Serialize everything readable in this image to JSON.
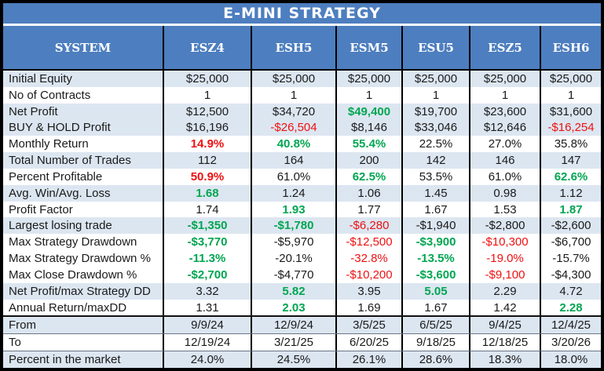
{
  "colors": {
    "header_blue": "#4d7ebf",
    "band_light_blue": "#dce6f1",
    "positive_green": "#00a651",
    "negative_red": "#ee1111",
    "frame_black": "#000000"
  },
  "chart_data": {
    "type": "table",
    "title": "E-MINI STRATEGY",
    "columns": [
      "SYSTEM",
      "ESZ4",
      "ESH5",
      "ESM5",
      "ESU5",
      "ESZ5",
      "ESH6"
    ],
    "style_legend": {
      "k": "black normal",
      "g": "green bold",
      "r": "red normal",
      "rb": "red bold"
    },
    "rows": [
      {
        "label": "Initial Equity",
        "values": [
          "$25,000",
          "$25,000",
          "$25,000",
          "$25,000",
          "$25,000",
          "$25,000"
        ],
        "styles": [
          "k",
          "k",
          "k",
          "k",
          "k",
          "k"
        ]
      },
      {
        "label": "No of Contracts",
        "values": [
          "1",
          "1",
          "1",
          "1",
          "1",
          "1"
        ],
        "styles": [
          "k",
          "k",
          "k",
          "k",
          "k",
          "k"
        ]
      },
      {
        "label": "Net Profit",
        "values": [
          "$12,500",
          "$34,720",
          "$49,400",
          "$19,700",
          "$23,600",
          "$31,600"
        ],
        "styles": [
          "k",
          "k",
          "g",
          "k",
          "k",
          "k"
        ]
      },
      {
        "label": "BUY & HOLD Profit",
        "values": [
          "$16,196",
          "-$26,504",
          "$8,146",
          "$33,046",
          "$12,646",
          "-$16,254"
        ],
        "styles": [
          "k",
          "r",
          "k",
          "k",
          "k",
          "r"
        ]
      },
      {
        "label": "Monthly Return",
        "values": [
          "14.9%",
          "40.8%",
          "55.4%",
          "22.5%",
          "27.0%",
          "35.8%"
        ],
        "styles": [
          "rb",
          "g",
          "g",
          "k",
          "k",
          "k"
        ]
      },
      {
        "label": "Total Number of Trades",
        "values": [
          "112",
          "164",
          "200",
          "142",
          "146",
          "147"
        ],
        "styles": [
          "k",
          "k",
          "k",
          "k",
          "k",
          "k"
        ]
      },
      {
        "label": "Percent Profitable",
        "values": [
          "50.9%",
          "61.0%",
          "62.5%",
          "53.5%",
          "61.0%",
          "62.6%"
        ],
        "styles": [
          "rb",
          "k",
          "g",
          "k",
          "k",
          "g"
        ]
      },
      {
        "label": "Avg. Win/Avg. Loss",
        "values": [
          "1.68",
          "1.24",
          "1.06",
          "1.45",
          "0.98",
          "1.12"
        ],
        "styles": [
          "g",
          "k",
          "k",
          "k",
          "k",
          "k"
        ]
      },
      {
        "label": "Profit Factor",
        "values": [
          "1.74",
          "1.93",
          "1.77",
          "1.67",
          "1.53",
          "1.87"
        ],
        "styles": [
          "k",
          "g",
          "k",
          "k",
          "k",
          "g"
        ]
      },
      {
        "label": "Largest losing trade",
        "values": [
          "-$1,350",
          "-$1,780",
          "-$6,280",
          "-$1,940",
          "-$2,800",
          "-$2,600"
        ],
        "styles": [
          "g",
          "g",
          "r",
          "k",
          "k",
          "k"
        ]
      },
      {
        "label": "Max Strategy Drawdown",
        "values": [
          "-$3,770",
          "-$5,970",
          "-$12,500",
          "-$3,900",
          "-$10,300",
          "-$6,700"
        ],
        "styles": [
          "g",
          "k",
          "r",
          "g",
          "r",
          "k"
        ]
      },
      {
        "label": "Max Strategy Drawdown %",
        "values": [
          "-11.3%",
          "-20.1%",
          "-32.8%",
          "-13.5%",
          "-19.0%",
          "-15.7%"
        ],
        "styles": [
          "g",
          "k",
          "r",
          "g",
          "r",
          "k"
        ]
      },
      {
        "label": "Max Close Drawdown %",
        "values": [
          "-$2,700",
          "-$4,770",
          "-$10,200",
          "-$3,600",
          "-$9,100",
          "-$4,300"
        ],
        "styles": [
          "g",
          "k",
          "r",
          "g",
          "r",
          "k"
        ]
      },
      {
        "label": "Net Profit/max Strategy DD",
        "values": [
          "3.32",
          "5.82",
          "3.95",
          "5.05",
          "2.29",
          "4.72"
        ],
        "styles": [
          "k",
          "g",
          "k",
          "g",
          "k",
          "k"
        ]
      },
      {
        "label": "Annual Return/maxDD",
        "values": [
          "1.31",
          "2.03",
          "1.69",
          "1.67",
          "1.42",
          "2.28"
        ],
        "styles": [
          "k",
          "g",
          "k",
          "k",
          "k",
          "g"
        ]
      },
      {
        "label": "From",
        "values": [
          "9/9/24",
          "12/9/24",
          "3/5/25",
          "6/5/25",
          "9/4/25",
          "12/4/25"
        ],
        "styles": [
          "k",
          "k",
          "k",
          "k",
          "k",
          "k"
        ]
      },
      {
        "label": "To",
        "values": [
          "12/19/24",
          "3/21/25",
          "6/20/25",
          "9/18/25",
          "12/18/25",
          "3/20/26"
        ],
        "styles": [
          "k",
          "k",
          "k",
          "k",
          "k",
          "k"
        ]
      },
      {
        "label": "Percent in the market",
        "values": [
          "24.0%",
          "24.5%",
          "26.1%",
          "28.6%",
          "18.3%",
          "18.0%"
        ],
        "styles": [
          "k",
          "k",
          "k",
          "k",
          "k",
          "k"
        ]
      }
    ]
  }
}
